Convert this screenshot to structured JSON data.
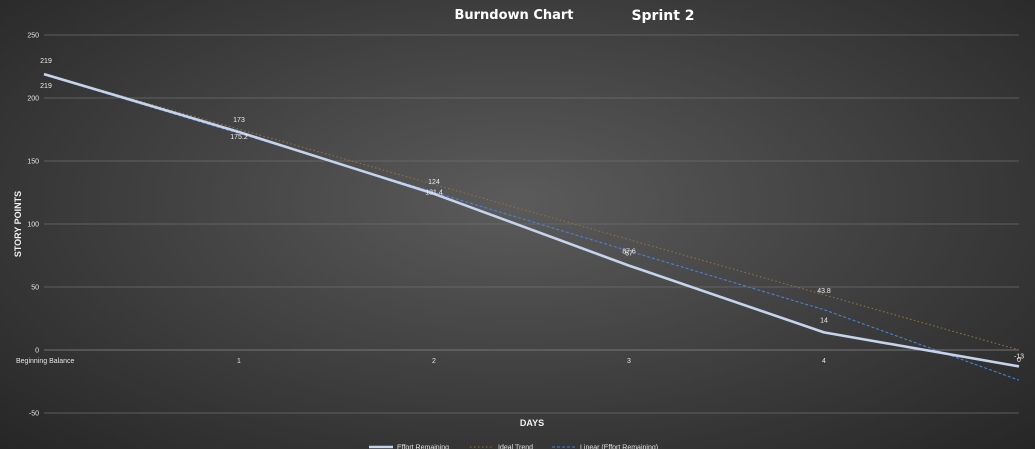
{
  "chart_data": {
    "type": "line",
    "title": "Burndown Chart",
    "subtitle": "Sprint 2",
    "xlabel": "DAYS",
    "ylabel": "STORY POINTS",
    "categories": [
      "Beginning Balance",
      "1",
      "2",
      "3",
      "4",
      ""
    ],
    "ylim": [
      -50,
      250
    ],
    "yticks": [
      250,
      200,
      150,
      100,
      50,
      0,
      -50
    ],
    "grid": true,
    "legend_position": "bottom",
    "series": [
      {
        "name": "Effort Remaining",
        "values": [
          219,
          173,
          124,
          67,
          14,
          -13
        ],
        "labels": [
          "219",
          "173",
          "124",
          "67",
          "14",
          "-13"
        ],
        "color": "#c5d3ec",
        "style": "solid"
      },
      {
        "name": "Ideal Trend",
        "values": [
          219,
          175.2,
          131.4,
          87.6,
          43.8,
          0
        ],
        "labels": [
          "219",
          "175.2",
          "131.4",
          "87.6",
          "43.8",
          "0"
        ],
        "color": "#8a7440",
        "style": "dotted"
      },
      {
        "name": "Linear (Effort Remaining)",
        "values": [
          218.4,
          171.8,
          125.2,
          78.6,
          32,
          -24
        ],
        "color": "#4f7fd0",
        "style": "dashed"
      }
    ]
  }
}
